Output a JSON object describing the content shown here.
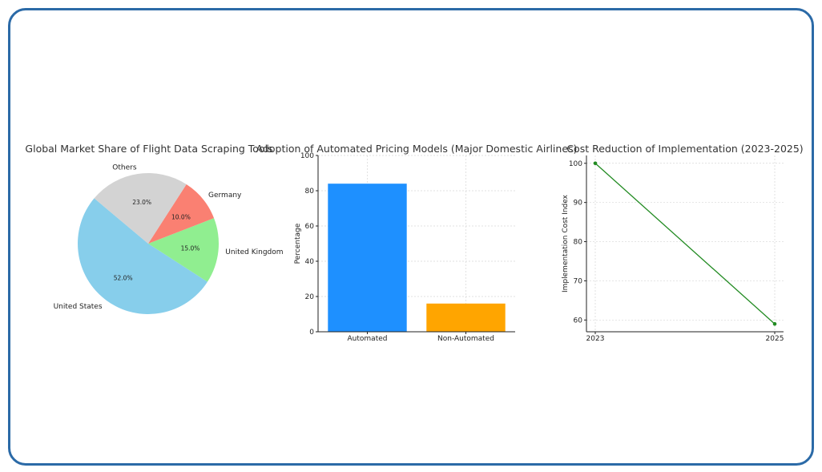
{
  "chart_data": [
    {
      "type": "pie",
      "title": "Global Market Share of Flight Data Scraping Tools",
      "slices": [
        {
          "label": "United States",
          "value": 52.0,
          "pct_label": "52.0%",
          "color": "#87ceeb"
        },
        {
          "label": "United Kingdom",
          "value": 15.0,
          "pct_label": "15.0%",
          "color": "#90ee90"
        },
        {
          "label": "Germany",
          "value": 10.0,
          "pct_label": "10.0%",
          "color": "#fa8072"
        },
        {
          "label": "Others",
          "value": 23.0,
          "pct_label": "23.0%",
          "color": "#d3d3d3"
        }
      ]
    },
    {
      "type": "bar",
      "title": "Adoption of Automated Pricing Models (Major Domestic Airlines)",
      "categories": [
        "Automated",
        "Non-Automated"
      ],
      "values": [
        84,
        16
      ],
      "colors": [
        "#1e90ff",
        "#ffa500"
      ],
      "xlabel": "",
      "ylabel": "Percentage",
      "ylim": [
        0,
        100
      ],
      "yticks": [
        0,
        20,
        40,
        60,
        80,
        100
      ],
      "grid": true
    },
    {
      "type": "line",
      "title": "Cost Reduction of Implementation (2023-2025)",
      "x": [
        2023,
        2025
      ],
      "y": [
        100,
        59
      ],
      "color": "#228b22",
      "xticks": [
        "2023",
        "2025"
      ],
      "xlabel": "",
      "ylabel": "Implementation Cost Index",
      "yticks": [
        60,
        70,
        80,
        90,
        100
      ],
      "ylim": [
        57,
        102
      ],
      "grid": true
    }
  ]
}
